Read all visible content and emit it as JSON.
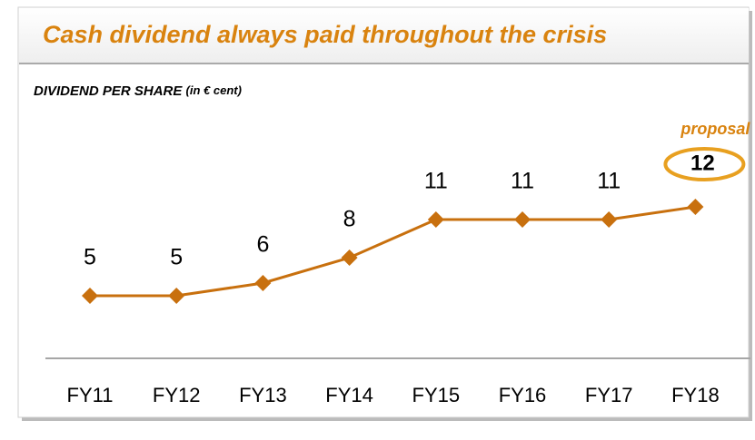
{
  "chart_data": {
    "type": "line",
    "title": "Cash dividend always paid throughout the crisis",
    "subtitle": "DIVIDEND PER SHARE",
    "unit": "(in € cent)",
    "annotation": "proposal",
    "categories": [
      "FY11",
      "FY12",
      "FY13",
      "FY14",
      "FY15",
      "FY16",
      "FY17",
      "FY18"
    ],
    "values": [
      5,
      5,
      6,
      8,
      11,
      11,
      11,
      12
    ],
    "color": "#c8700e"
  }
}
